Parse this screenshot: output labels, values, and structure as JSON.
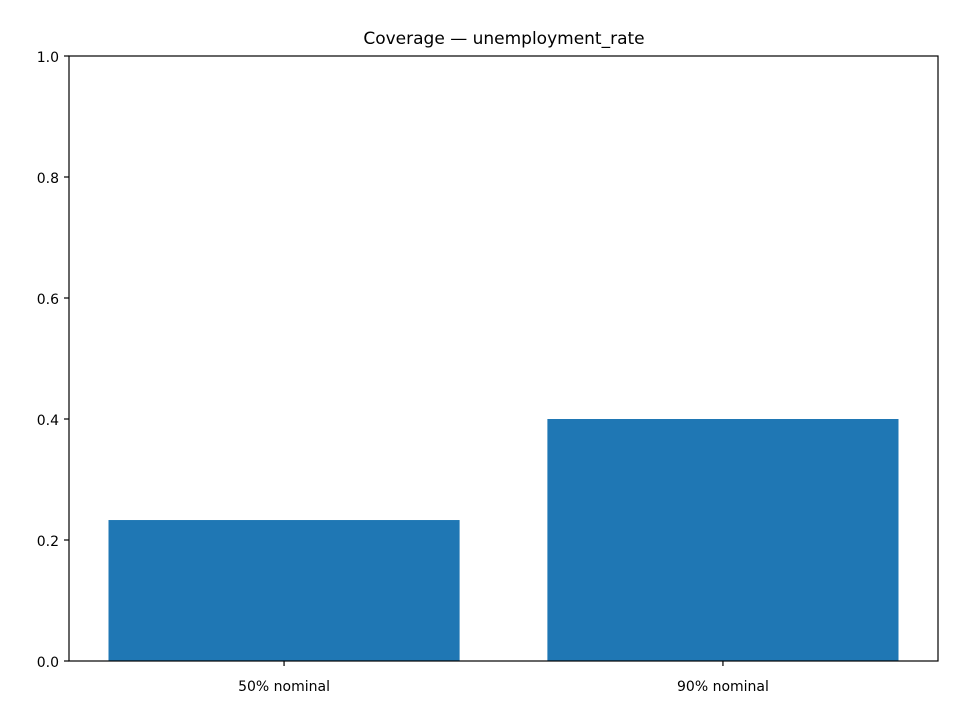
{
  "chart_data": {
    "type": "bar",
    "title": "Coverage — unemployment_rate",
    "xlabel": "",
    "ylabel": "",
    "categories": [
      "50% nominal",
      "90% nominal"
    ],
    "values": [
      0.233,
      0.4
    ],
    "ylim": [
      0,
      1.0
    ],
    "yticks": [
      0.0,
      0.2,
      0.4,
      0.6,
      0.8,
      1.0
    ],
    "ytick_labels": [
      "0.0",
      "0.2",
      "0.4",
      "0.6",
      "0.8",
      "1.0"
    ],
    "bar_color": "#1f77b4",
    "grid": false,
    "legend": "none"
  }
}
